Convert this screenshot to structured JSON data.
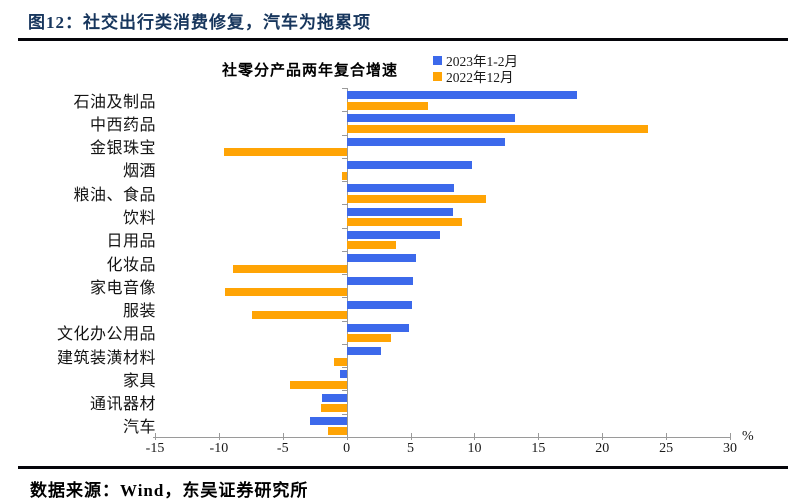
{
  "header": {
    "figure_label": "图12：",
    "title": "社交出行类消费修复，汽车为拖累项"
  },
  "chart_data": {
    "type": "bar",
    "orientation": "horizontal",
    "title": "社零分产品两年复合增速",
    "unit": "%",
    "categories": [
      "石油及制品",
      "中西药品",
      "金银珠宝",
      "烟酒",
      "粮油、食品",
      "饮料",
      "日用品",
      "化妆品",
      "家电音像",
      "服装",
      "文化办公用品",
      "建筑装潢材料",
      "家具",
      "通讯器材",
      "汽车"
    ],
    "series": [
      {
        "name": "2023年1-2月",
        "color": "#3C69EB",
        "values": [
          18.0,
          13.2,
          12.4,
          9.8,
          8.4,
          8.3,
          7.3,
          5.4,
          5.2,
          5.1,
          4.9,
          2.7,
          -0.5,
          -1.9,
          -2.9
        ]
      },
      {
        "name": "2022年12月",
        "color": "#FFA405",
        "values": [
          6.4,
          23.6,
          -9.6,
          -0.4,
          10.9,
          9.0,
          3.9,
          -8.9,
          -9.5,
          -7.4,
          3.5,
          -1.0,
          -4.4,
          -2.0,
          -1.5
        ]
      }
    ],
    "xlim": [
      -15,
      30
    ],
    "xticks": [
      -15,
      -10,
      -5,
      0,
      5,
      10,
      15,
      20,
      25,
      30
    ],
    "legend_position": "top-right",
    "grid": false
  },
  "footer": {
    "source": "数据来源：Wind，东吴证券研究所"
  },
  "colors": {
    "series_2023": "#3C69EB",
    "series_2022": "#FFA405",
    "header_text": "#17365D",
    "axis": "#9a9a9a"
  }
}
